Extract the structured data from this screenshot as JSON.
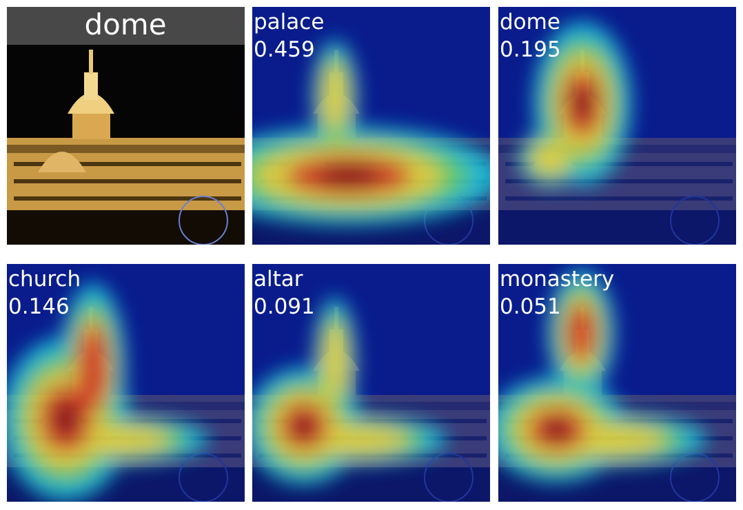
{
  "original": {
    "label": "dome"
  },
  "panels": [
    {
      "label": "palace",
      "score": 0.459
    },
    {
      "label": "dome",
      "score": 0.195
    },
    {
      "label": "church",
      "score": 0.146
    },
    {
      "label": "altar",
      "score": 0.091
    },
    {
      "label": "monastery",
      "score": 0.051
    }
  ]
}
